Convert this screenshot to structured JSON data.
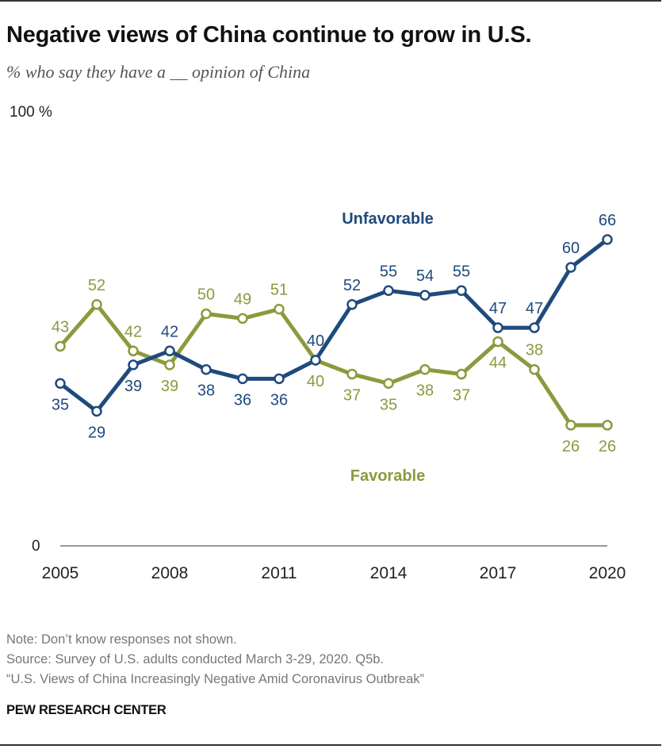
{
  "header": {
    "title": "Negative views of China continue to grow in U.S.",
    "subtitle": "% who say they have a __ opinion of China"
  },
  "chart_data": {
    "type": "line",
    "x": [
      2005,
      2006,
      2007,
      2008,
      2009,
      2010,
      2011,
      2012,
      2013,
      2014,
      2015,
      2016,
      2017,
      2018,
      2019,
      2020
    ],
    "xticks": [
      2005,
      2008,
      2011,
      2014,
      2017,
      2020
    ],
    "ylim": [
      0,
      100
    ],
    "ytick_top_label": "100 %",
    "ytick_bottom_label": "0",
    "grid": false,
    "series": [
      {
        "name": "Unfavorable",
        "color": "#1f4a7d",
        "values": [
          35,
          29,
          39,
          42,
          38,
          36,
          36,
          40,
          52,
          55,
          54,
          55,
          47,
          47,
          60,
          66
        ]
      },
      {
        "name": "Favorable",
        "color": "#8b9a3d",
        "values": [
          43,
          52,
          42,
          39,
          50,
          49,
          51,
          40,
          37,
          35,
          38,
          37,
          44,
          38,
          26,
          26
        ]
      }
    ]
  },
  "notes": {
    "note": "Note: Don’t know responses not shown.",
    "source": "Source: Survey of U.S. adults conducted March 3-29, 2020. Q5b.",
    "report": "“U.S. Views of China Increasingly Negative Amid Coronavirus Outbreak”"
  },
  "brand": "PEW RESEARCH CENTER"
}
